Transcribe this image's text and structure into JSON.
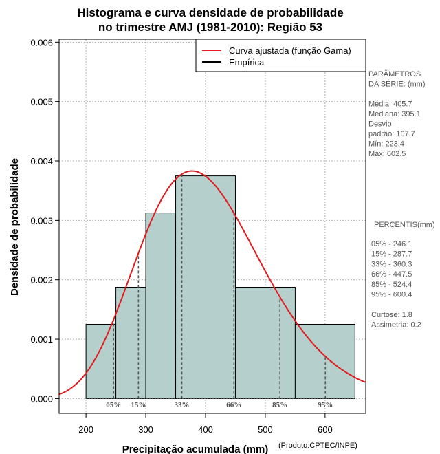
{
  "chart_data": {
    "type": "bar",
    "title": [
      "Histograma e curva densidade de probabilidade",
      "no trimestre AMJ (1981-2010): Região 53"
    ],
    "xlabel": "Precipitação acumulada (mm)",
    "ylabel": "Densidade de probabilidade",
    "xlim": [
      155,
      668
    ],
    "ylim": [
      -0.00025,
      0.00605
    ],
    "xticks": [
      200,
      300,
      400,
      500,
      600
    ],
    "yticks": [
      0.0,
      0.001,
      0.002,
      0.003,
      0.004,
      0.005,
      0.006
    ],
    "ytick_labels": [
      "0.000",
      "0.001",
      "0.002",
      "0.003",
      "0.004",
      "0.005",
      "0.006"
    ],
    "grid": true,
    "bins": [
      {
        "start": 200,
        "end": 250,
        "density": 0.00125
      },
      {
        "start": 250,
        "end": 300,
        "density": 0.001875
      },
      {
        "start": 300,
        "end": 350,
        "density": 0.003125
      },
      {
        "start": 350,
        "end": 450,
        "density": 0.00375
      },
      {
        "start": 450,
        "end": 550,
        "density": 0.001875
      },
      {
        "start": 550,
        "end": 650,
        "density": 0.00125
      }
    ],
    "curve": {
      "name": "Curva ajustada (função Gama)",
      "color": "#e31a1c",
      "shape": 14.3,
      "mean": 405.7
    },
    "legend": [
      {
        "label": "Curva ajustada (função Gama)",
        "color": "#e31a1c"
      },
      {
        "label": "Empírica",
        "color": "#000000"
      }
    ],
    "legend_position": "top-right",
    "percentiles": [
      {
        "label": "05%",
        "value": 246.1
      },
      {
        "label": "15%",
        "value": 287.7
      },
      {
        "label": "33%",
        "value": 360.3
      },
      {
        "label": "66%",
        "value": 447.5
      },
      {
        "label": "85%",
        "value": 524.4
      },
      {
        "label": "95%",
        "value": 600.4
      }
    ],
    "bar_color": "#b5cfcd",
    "credit": "(Produto:CPTEC/INPE)"
  },
  "side_panel": {
    "params_lines": [
      "PARÂMETROS",
      " DA SÉRIE: (mm)",
      "",
      "Média:  405.7",
      "Mediana:  395.1",
      "Desvio",
      "padrão:  107.7",
      "Mín:  223.4",
      "Máx:  602.5"
    ],
    "percentis_title": "PERCENTIS(mm)",
    "percentis_lines": [
      "05% -  246.1",
      "15% -  287.7",
      "33% -  360.3",
      "66% -  447.5",
      "85% -  524.4",
      "95% -  600.4",
      "",
      "Curtose:  1.8",
      "Assimetria:  0.2"
    ]
  }
}
